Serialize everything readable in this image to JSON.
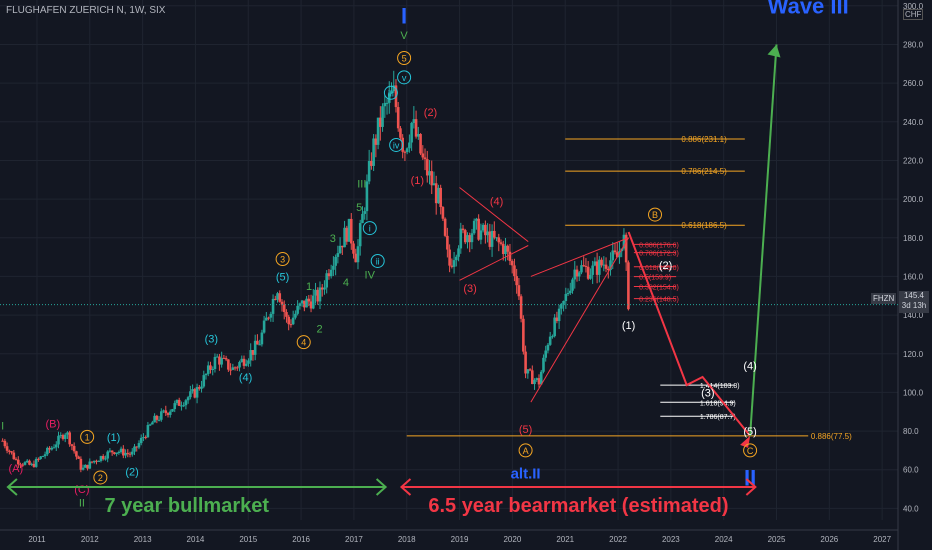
{
  "header": {
    "title": "FLUGHAFEN ZUERICH N, 1W, SIX",
    "currency": "CHF"
  },
  "price_tag": {
    "symbol": "FHZN",
    "price": "145.4",
    "countdown": "3d 13h"
  },
  "colors": {
    "bg": "#131722",
    "up": "#26a69a",
    "down": "#ef5350",
    "orange": "#f5a623",
    "green": "#4caf50",
    "red": "#f23645",
    "blue": "#2962ff",
    "teal": "#26c6da",
    "pink": "#e91e63"
  },
  "chart_data": {
    "type": "candlestick",
    "xlabel": "",
    "ylabel": "",
    "x_ticks": [
      "2011",
      "2012",
      "2013",
      "2014",
      "2015",
      "2016",
      "2017",
      "2018",
      "2019",
      "2020",
      "2021",
      "2022",
      "2023",
      "2024",
      "2025",
      "2026",
      "2027"
    ],
    "y_ticks": [
      "40.0",
      "60.0",
      "80.0",
      "100.0",
      "120.0",
      "140.0",
      "160.0",
      "180.0",
      "200.0",
      "220.0",
      "240.0",
      "260.0",
      "280.0",
      "300.0"
    ],
    "ylim": [
      34,
      303
    ],
    "xlim": [
      2010.3,
      2027.3
    ],
    "price_path": [
      [
        2010.35,
        75
      ],
      [
        2010.6,
        65
      ],
      [
        2010.9,
        62
      ],
      [
        2011.3,
        72
      ],
      [
        2011.55,
        80
      ],
      [
        2011.85,
        60
      ],
      [
        2012.1,
        65
      ],
      [
        2012.45,
        70
      ],
      [
        2012.8,
        68
      ],
      [
        2013.2,
        85
      ],
      [
        2013.6,
        93
      ],
      [
        2014.0,
        100
      ],
      [
        2014.4,
        118
      ],
      [
        2014.7,
        112
      ],
      [
        2014.95,
        118
      ],
      [
        2015.2,
        125
      ],
      [
        2015.55,
        155
      ],
      [
        2015.75,
        135
      ],
      [
        2016.0,
        145
      ],
      [
        2016.35,
        150
      ],
      [
        2016.6,
        170
      ],
      [
        2016.9,
        185
      ],
      [
        2017.05,
        170
      ],
      [
        2017.35,
        225
      ],
      [
        2017.55,
        245
      ],
      [
        2017.75,
        255
      ],
      [
        2017.95,
        225
      ],
      [
        2018.1,
        240
      ],
      [
        2018.3,
        220
      ],
      [
        2018.6,
        200
      ],
      [
        2018.8,
        165
      ],
      [
        2019.0,
        180
      ],
      [
        2019.3,
        185
      ],
      [
        2019.55,
        180
      ],
      [
        2019.85,
        175
      ],
      [
        2020.1,
        158
      ],
      [
        2020.25,
        110
      ],
      [
        2020.5,
        105
      ],
      [
        2020.7,
        130
      ],
      [
        2020.9,
        140
      ],
      [
        2021.2,
        165
      ],
      [
        2021.5,
        163
      ],
      [
        2021.8,
        168
      ],
      [
        2022.0,
        170
      ],
      [
        2022.1,
        183
      ],
      [
        2022.2,
        145.4
      ]
    ],
    "fibs_upper": [
      {
        "label": "0.886(231.1)",
        "value": 231.1
      },
      {
        "label": "0.786(214.5)",
        "value": 214.5
      },
      {
        "label": "0.618(186.5)",
        "value": 186.5
      }
    ],
    "fibs_small": [
      {
        "label": "0.886(176.6)",
        "value": 176.6
      },
      {
        "label": "0.786(172.3)",
        "value": 172.3
      },
      {
        "label": "0.618(165.0)",
        "value": 165.0
      },
      {
        "label": "0.5(159.9)",
        "value": 159.9
      },
      {
        "label": "0.382(154.8)",
        "value": 154.8
      },
      {
        "label": "0.236(148.5)",
        "value": 148.5
      }
    ],
    "fibs_ext": [
      {
        "label": "1.414(103.8)",
        "value": 103.8
      },
      {
        "label": "1.618(94.9)",
        "value": 94.9
      },
      {
        "label": "1.786(87.7)",
        "value": 87.7
      }
    ],
    "fib_bottom": {
      "label": "0.886(77.5)",
      "value": 77.5
    },
    "current_price": 145.4,
    "projection": [
      [
        2022.2,
        183
      ],
      [
        2023.3,
        103.8
      ],
      [
        2023.6,
        108
      ],
      [
        2024.5,
        77.5
      ],
      [
        2025.0,
        280
      ]
    ],
    "wave_labels": [
      {
        "text": "I",
        "x": 2010.35,
        "y": 83,
        "color": "green",
        "style": "plain"
      },
      {
        "text": "(A)",
        "x": 2010.6,
        "y": 61,
        "color": "pink",
        "style": "plain"
      },
      {
        "text": "(B)",
        "x": 2011.3,
        "y": 84,
        "color": "pink",
        "style": "plain"
      },
      {
        "text": "(C)",
        "x": 2011.85,
        "y": 50,
        "color": "pink",
        "style": "plain"
      },
      {
        "text": "II",
        "x": 2011.85,
        "y": 43,
        "color": "green",
        "style": "plain"
      },
      {
        "text": "1",
        "x": 2011.95,
        "y": 77,
        "color": "orange",
        "style": "circle"
      },
      {
        "text": "2",
        "x": 2012.2,
        "y": 56,
        "color": "orange",
        "style": "circle"
      },
      {
        "text": "(1)",
        "x": 2012.45,
        "y": 77,
        "color": "teal",
        "style": "plain"
      },
      {
        "text": "(2)",
        "x": 2012.8,
        "y": 59,
        "color": "teal",
        "style": "plain"
      },
      {
        "text": "(3)",
        "x": 2014.3,
        "y": 128,
        "color": "teal",
        "style": "plain"
      },
      {
        "text": "(4)",
        "x": 2014.95,
        "y": 108,
        "color": "teal",
        "style": "plain"
      },
      {
        "text": "3",
        "x": 2015.65,
        "y": 169,
        "color": "orange",
        "style": "circle"
      },
      {
        "text": "(5)",
        "x": 2015.65,
        "y": 160,
        "color": "teal",
        "style": "plain"
      },
      {
        "text": "4",
        "x": 2016.05,
        "y": 126,
        "color": "orange",
        "style": "circle"
      },
      {
        "text": "1",
        "x": 2016.15,
        "y": 155,
        "color": "green",
        "style": "plain"
      },
      {
        "text": "2",
        "x": 2016.35,
        "y": 133,
        "color": "green",
        "style": "plain"
      },
      {
        "text": "3",
        "x": 2016.6,
        "y": 180,
        "color": "green",
        "style": "plain"
      },
      {
        "text": "4",
        "x": 2016.85,
        "y": 157,
        "color": "green",
        "style": "plain"
      },
      {
        "text": "5",
        "x": 2017.1,
        "y": 196,
        "color": "green",
        "style": "plain"
      },
      {
        "text": "III",
        "x": 2017.15,
        "y": 208,
        "color": "green",
        "style": "plain"
      },
      {
        "text": "IV",
        "x": 2017.3,
        "y": 161,
        "color": "green",
        "style": "plain"
      },
      {
        "text": "i",
        "x": 2017.3,
        "y": 185,
        "color": "teal",
        "style": "circle"
      },
      {
        "text": "ii",
        "x": 2017.45,
        "y": 168,
        "color": "teal",
        "style": "circle"
      },
      {
        "text": "iii",
        "x": 2017.7,
        "y": 255,
        "color": "teal",
        "style": "circle"
      },
      {
        "text": "iv",
        "x": 2017.8,
        "y": 228,
        "color": "teal",
        "style": "circle"
      },
      {
        "text": "v",
        "x": 2017.95,
        "y": 263,
        "color": "teal",
        "style": "circle"
      },
      {
        "text": "5",
        "x": 2017.95,
        "y": 273,
        "color": "orange",
        "style": "circle"
      },
      {
        "text": "V",
        "x": 2017.95,
        "y": 285,
        "color": "green",
        "style": "plain"
      },
      {
        "text": "I",
        "x": 2017.95,
        "y": 295,
        "color": "blue",
        "style": "big"
      },
      {
        "text": "(1)",
        "x": 2018.2,
        "y": 210,
        "color": "red",
        "style": "plain"
      },
      {
        "text": "(2)",
        "x": 2018.45,
        "y": 245,
        "color": "red",
        "style": "plain"
      },
      {
        "text": "(3)",
        "x": 2019.2,
        "y": 154,
        "color": "red",
        "style": "plain"
      },
      {
        "text": "(4)",
        "x": 2019.7,
        "y": 199,
        "color": "red",
        "style": "plain"
      },
      {
        "text": "(5)",
        "x": 2020.25,
        "y": 81,
        "color": "red",
        "style": "plain"
      },
      {
        "text": "A",
        "x": 2020.25,
        "y": 70,
        "color": "orange",
        "style": "circle"
      },
      {
        "text": "alt.II",
        "x": 2020.25,
        "y": 58,
        "color": "blue",
        "style": "mid"
      },
      {
        "text": "B",
        "x": 2022.7,
        "y": 192,
        "color": "orange",
        "style": "circle"
      },
      {
        "text": "(2)",
        "x": 2022.9,
        "y": 166,
        "color": "white",
        "style": "plain"
      },
      {
        "text": "(1)",
        "x": 2022.2,
        "y": 135,
        "color": "white",
        "style": "plain"
      },
      {
        "text": "(3)",
        "x": 2023.7,
        "y": 100,
        "color": "white",
        "style": "plain"
      },
      {
        "text": "(4)",
        "x": 2024.5,
        "y": 114,
        "color": "white",
        "style": "plain"
      },
      {
        "text": "(5)",
        "x": 2024.5,
        "y": 80,
        "color": "white",
        "style": "plain"
      },
      {
        "text": "C",
        "x": 2024.5,
        "y": 70,
        "color": "orange",
        "style": "circle"
      },
      {
        "text": "II",
        "x": 2024.5,
        "y": 56,
        "color": "blue",
        "style": "big"
      }
    ],
    "wave_iii_label": "Wave III",
    "bull_label": "7 year bullmarket",
    "bear_label": "6.5 year bearmarket (estimated)"
  }
}
